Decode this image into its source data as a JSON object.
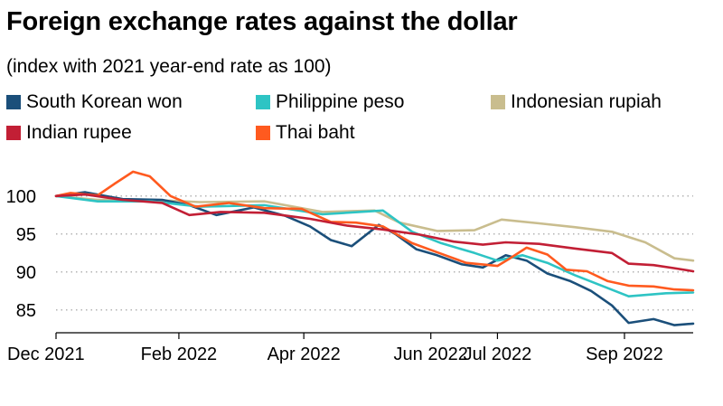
{
  "title": "Foreign exchange rates against the dollar",
  "subtitle": "(index with 2021 year-end rate as 100)",
  "chart_data": {
    "type": "line",
    "title": "Foreign exchange rates against the dollar",
    "subtitle": "(index with 2021 year-end rate as 100)",
    "xlabel": "",
    "ylabel": "",
    "ylim": [
      82,
      102
    ],
    "yticks": [
      85,
      90,
      95,
      100
    ],
    "grid": true,
    "legend_position": "top",
    "x_tick_labels": [
      {
        "date": "2021-12-31",
        "label": "Dec 2021"
      },
      {
        "date": "2022-02-28",
        "label": "Feb 2022"
      },
      {
        "date": "2022-04-29",
        "label": "Apr 2022"
      },
      {
        "date": "2022-06-29",
        "label": "Jun 2022"
      },
      {
        "date": "2022-07-31",
        "label": "Jul 2022"
      },
      {
        "date": "2022-09-30",
        "label": "Sep 2022"
      }
    ],
    "x_range": [
      "2021-12-31",
      "2022-11-02"
    ],
    "series": [
      {
        "name": "South Korean won",
        "color": "#1b4f7a",
        "points": [
          [
            "2021-12-31",
            100
          ],
          [
            "2022-01-14",
            100.5
          ],
          [
            "2022-02-01",
            99.6
          ],
          [
            "2022-02-20",
            99.5
          ],
          [
            "2022-03-05",
            98.8
          ],
          [
            "2022-03-18",
            97.5
          ],
          [
            "2022-04-05",
            98.5
          ],
          [
            "2022-04-20",
            97.4
          ],
          [
            "2022-05-02",
            96
          ],
          [
            "2022-05-12",
            94.2
          ],
          [
            "2022-05-22",
            93.4
          ],
          [
            "2022-06-04",
            96.2
          ],
          [
            "2022-06-12",
            95
          ],
          [
            "2022-06-22",
            93
          ],
          [
            "2022-07-02",
            92.2
          ],
          [
            "2022-07-14",
            91
          ],
          [
            "2022-07-24",
            90.6
          ],
          [
            "2022-08-04",
            92.2
          ],
          [
            "2022-08-14",
            91.5
          ],
          [
            "2022-08-24",
            89.8
          ],
          [
            "2022-09-04",
            88.8
          ],
          [
            "2022-09-14",
            87.5
          ],
          [
            "2022-09-24",
            85.6
          ],
          [
            "2022-10-02",
            83.3
          ],
          [
            "2022-10-14",
            83.8
          ],
          [
            "2022-10-24",
            83
          ],
          [
            "2022-11-02",
            83.2
          ]
        ]
      },
      {
        "name": "Philippine peso",
        "color": "#2ec4c4",
        "points": [
          [
            "2021-12-31",
            100
          ],
          [
            "2022-01-20",
            99.3
          ],
          [
            "2022-02-15",
            99.3
          ],
          [
            "2022-03-10",
            98.6
          ],
          [
            "2022-04-10",
            98.8
          ],
          [
            "2022-05-08",
            97.6
          ],
          [
            "2022-06-06",
            98.1
          ],
          [
            "2022-06-20",
            95.3
          ],
          [
            "2022-07-04",
            93.8
          ],
          [
            "2022-07-20",
            92.5
          ],
          [
            "2022-07-31",
            91.5
          ],
          [
            "2022-08-12",
            92.2
          ],
          [
            "2022-08-24",
            91.2
          ],
          [
            "2022-09-06",
            89.6
          ],
          [
            "2022-09-20",
            88.1
          ],
          [
            "2022-10-02",
            86.8
          ],
          [
            "2022-10-20",
            87.2
          ],
          [
            "2022-11-02",
            87.3
          ]
        ]
      },
      {
        "name": "Indonesian rupiah",
        "color": "#c9bd8e",
        "points": [
          [
            "2021-12-31",
            100
          ],
          [
            "2022-01-20",
            99.5
          ],
          [
            "2022-02-15",
            99.5
          ],
          [
            "2022-03-10",
            99.2
          ],
          [
            "2022-04-10",
            99.3
          ],
          [
            "2022-05-08",
            97.9
          ],
          [
            "2022-06-02",
            98.1
          ],
          [
            "2022-06-14",
            96.5
          ],
          [
            "2022-07-02",
            95.4
          ],
          [
            "2022-07-20",
            95.5
          ],
          [
            "2022-08-02",
            96.9
          ],
          [
            "2022-08-20",
            96.4
          ],
          [
            "2022-09-06",
            95.9
          ],
          [
            "2022-09-24",
            95.3
          ],
          [
            "2022-10-10",
            93.9
          ],
          [
            "2022-10-24",
            91.8
          ],
          [
            "2022-11-02",
            91.5
          ]
        ]
      },
      {
        "name": "Indian rupee",
        "color": "#c21f35",
        "points": [
          [
            "2021-12-31",
            100
          ],
          [
            "2022-01-14",
            100.2
          ],
          [
            "2022-02-01",
            99.5
          ],
          [
            "2022-02-20",
            99.1
          ],
          [
            "2022-03-05",
            97.5
          ],
          [
            "2022-03-20",
            97.9
          ],
          [
            "2022-04-10",
            97.8
          ],
          [
            "2022-05-02",
            97
          ],
          [
            "2022-05-20",
            96.1
          ],
          [
            "2022-06-06",
            95.6
          ],
          [
            "2022-06-24",
            94.9
          ],
          [
            "2022-07-10",
            94
          ],
          [
            "2022-07-24",
            93.6
          ],
          [
            "2022-08-04",
            93.9
          ],
          [
            "2022-08-20",
            93.7
          ],
          [
            "2022-09-06",
            93.1
          ],
          [
            "2022-09-24",
            92.5
          ],
          [
            "2022-10-02",
            91.1
          ],
          [
            "2022-10-14",
            90.9
          ],
          [
            "2022-10-24",
            90.5
          ],
          [
            "2022-11-02",
            90.1
          ]
        ]
      },
      {
        "name": "Thai baht",
        "color": "#ff5a1f",
        "points": [
          [
            "2021-12-31",
            100
          ],
          [
            "2022-01-07",
            100.4
          ],
          [
            "2022-01-20",
            100.1
          ],
          [
            "2022-01-28",
            101.6
          ],
          [
            "2022-02-06",
            103.2
          ],
          [
            "2022-02-14",
            102.6
          ],
          [
            "2022-02-24",
            100
          ],
          [
            "2022-03-08",
            98.6
          ],
          [
            "2022-03-24",
            99.1
          ],
          [
            "2022-04-10",
            98.4
          ],
          [
            "2022-04-28",
            98.3
          ],
          [
            "2022-05-12",
            96.6
          ],
          [
            "2022-05-24",
            96.5
          ],
          [
            "2022-06-06",
            96
          ],
          [
            "2022-06-20",
            93.8
          ],
          [
            "2022-07-06",
            92.2
          ],
          [
            "2022-07-16",
            91.2
          ],
          [
            "2022-07-31",
            90.8
          ],
          [
            "2022-08-06",
            91.8
          ],
          [
            "2022-08-14",
            93.2
          ],
          [
            "2022-08-24",
            92.3
          ],
          [
            "2022-09-02",
            90.3
          ],
          [
            "2022-09-12",
            90.1
          ],
          [
            "2022-09-22",
            88.8
          ],
          [
            "2022-10-02",
            88.2
          ],
          [
            "2022-10-14",
            88.1
          ],
          [
            "2022-10-24",
            87.7
          ],
          [
            "2022-11-02",
            87.6
          ]
        ]
      }
    ]
  }
}
